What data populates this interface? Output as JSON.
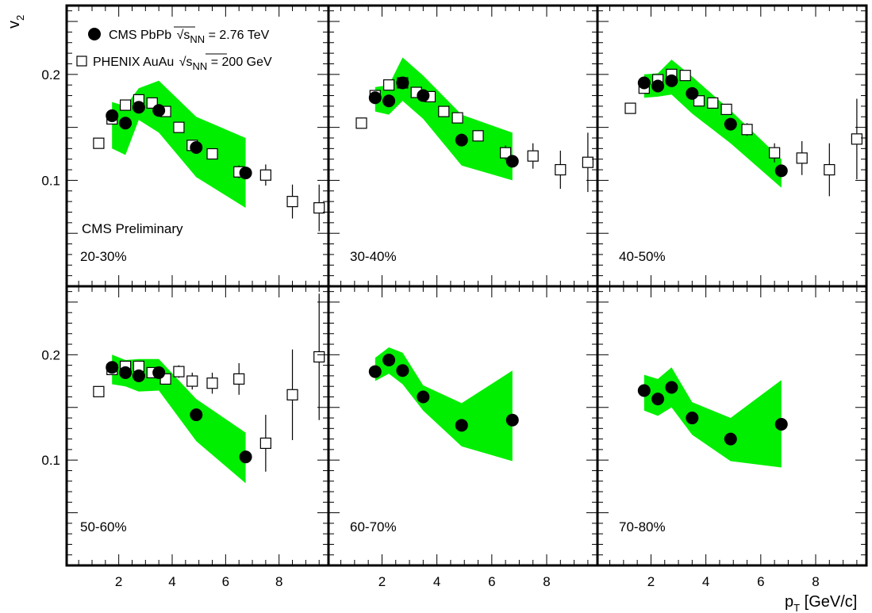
{
  "chart_data": {
    "type": "scatter",
    "layout": "2x3 panels",
    "xlabel": "p",
    "xlabel_sub": "T",
    "xlabel_unit": " [GeV/c]",
    "ylabel": "v",
    "ylabel_sub": "2",
    "xlim": [
      0.05,
      9.85
    ],
    "ylim": [
      0.0,
      0.265
    ],
    "x_ticks": [
      2,
      4,
      6,
      8
    ],
    "y_ticks": [
      0.1,
      0.2
    ],
    "y_tick_labels": [
      "0.1",
      "0.2"
    ],
    "preliminary_label": "CMS Preliminary",
    "band_color": "#00ee00",
    "legend": [
      {
        "marker": "filled-circle",
        "prefix": "CMS PbPb",
        "sqrt_symbol": "√",
        "s": "s",
        "sub": "NN",
        "suffix": " = 2.76 TeV"
      },
      {
        "marker": "open-square",
        "prefix": "PHENIX AuAu",
        "sqrt_symbol": "√",
        "s": "s",
        "sub": "NN",
        "suffix": " = 200 GeV"
      }
    ],
    "panels": [
      {
        "label": "20-30%",
        "cms": [
          [
            1.75,
            0.161
          ],
          [
            2.25,
            0.154
          ],
          [
            2.75,
            0.169
          ],
          [
            3.5,
            0.166
          ],
          [
            4.9,
            0.131
          ],
          [
            6.75,
            0.107
          ]
        ],
        "band": [
          [
            1.75,
            0.174,
            0.13
          ],
          [
            2.25,
            0.17,
            0.124
          ],
          [
            2.75,
            0.187,
            0.157
          ],
          [
            3.5,
            0.194,
            0.145
          ],
          [
            4.9,
            0.16,
            0.103
          ],
          [
            6.75,
            0.14,
            0.074
          ]
        ],
        "phenix": [
          [
            1.25,
            0.135,
            0.002
          ],
          [
            1.75,
            0.158,
            0.002
          ],
          [
            2.25,
            0.171,
            0.002
          ],
          [
            2.75,
            0.176,
            0.002
          ],
          [
            3.25,
            0.173,
            0.002
          ],
          [
            3.75,
            0.165,
            0.003
          ],
          [
            4.25,
            0.15,
            0.003
          ],
          [
            4.75,
            0.133,
            0.004
          ],
          [
            5.5,
            0.125,
            0.004
          ],
          [
            6.5,
            0.108,
            0.006
          ],
          [
            7.5,
            0.105,
            0.01
          ],
          [
            8.5,
            0.08,
            0.016
          ],
          [
            9.5,
            0.074,
            0.022
          ]
        ]
      },
      {
        "label": "30-40%",
        "cms": [
          [
            1.75,
            0.178
          ],
          [
            2.25,
            0.175
          ],
          [
            2.75,
            0.192
          ],
          [
            3.5,
            0.18
          ],
          [
            4.9,
            0.138
          ],
          [
            6.75,
            0.118
          ]
        ],
        "band": [
          [
            1.75,
            0.188,
            0.165
          ],
          [
            2.25,
            0.19,
            0.162
          ],
          [
            2.75,
            0.216,
            0.175
          ],
          [
            3.5,
            0.199,
            0.158
          ],
          [
            4.9,
            0.162,
            0.114
          ],
          [
            6.75,
            0.145,
            0.1
          ]
        ],
        "phenix": [
          [
            1.25,
            0.154,
            0.002
          ],
          [
            1.75,
            0.18,
            0.002
          ],
          [
            2.25,
            0.19,
            0.002
          ],
          [
            2.75,
            0.192,
            0.002
          ],
          [
            3.25,
            0.183,
            0.003
          ],
          [
            3.75,
            0.179,
            0.003
          ],
          [
            4.25,
            0.165,
            0.003
          ],
          [
            4.75,
            0.159,
            0.004
          ],
          [
            5.5,
            0.142,
            0.004
          ],
          [
            6.5,
            0.126,
            0.007
          ],
          [
            7.5,
            0.123,
            0.012
          ],
          [
            8.5,
            0.11,
            0.018
          ],
          [
            9.5,
            0.117,
            0.028
          ]
        ]
      },
      {
        "label": "40-50%",
        "cms": [
          [
            1.75,
            0.192
          ],
          [
            2.25,
            0.189
          ],
          [
            2.75,
            0.194
          ],
          [
            3.5,
            0.182
          ],
          [
            4.9,
            0.153
          ],
          [
            6.75,
            0.109
          ]
        ],
        "band": [
          [
            1.75,
            0.2,
            0.178
          ],
          [
            2.25,
            0.201,
            0.179
          ],
          [
            2.75,
            0.214,
            0.181
          ],
          [
            3.5,
            0.198,
            0.163
          ],
          [
            4.9,
            0.166,
            0.135
          ],
          [
            6.75,
            0.12,
            0.093
          ]
        ],
        "phenix": [
          [
            1.25,
            0.168,
            0.002
          ],
          [
            1.75,
            0.187,
            0.002
          ],
          [
            2.25,
            0.195,
            0.002
          ],
          [
            2.75,
            0.2,
            0.003
          ],
          [
            3.25,
            0.199,
            0.003
          ],
          [
            3.75,
            0.175,
            0.003
          ],
          [
            4.25,
            0.173,
            0.004
          ],
          [
            4.75,
            0.167,
            0.005
          ],
          [
            5.5,
            0.148,
            0.006
          ],
          [
            6.5,
            0.126,
            0.009
          ],
          [
            7.5,
            0.121,
            0.016
          ],
          [
            8.5,
            0.11,
            0.025
          ],
          [
            9.5,
            0.139,
            0.038
          ]
        ]
      },
      {
        "label": "50-60%",
        "cms": [
          [
            1.75,
            0.188
          ],
          [
            2.25,
            0.183
          ],
          [
            2.75,
            0.18
          ],
          [
            3.5,
            0.183
          ],
          [
            4.9,
            0.143
          ],
          [
            6.75,
            0.103
          ]
        ],
        "band": [
          [
            1.75,
            0.2,
            0.172
          ],
          [
            2.25,
            0.195,
            0.17
          ],
          [
            2.75,
            0.196,
            0.165
          ],
          [
            3.5,
            0.196,
            0.166
          ],
          [
            4.9,
            0.158,
            0.118
          ],
          [
            6.75,
            0.126,
            0.078
          ]
        ],
        "phenix": [
          [
            1.25,
            0.165,
            0.002
          ],
          [
            1.75,
            0.186,
            0.003
          ],
          [
            2.25,
            0.189,
            0.003
          ],
          [
            2.75,
            0.189,
            0.004
          ],
          [
            3.25,
            0.183,
            0.004
          ],
          [
            3.75,
            0.177,
            0.005
          ],
          [
            4.25,
            0.184,
            0.006
          ],
          [
            4.75,
            0.175,
            0.008
          ],
          [
            5.5,
            0.173,
            0.01
          ],
          [
            6.5,
            0.177,
            0.015
          ],
          [
            7.5,
            0.116,
            0.027
          ],
          [
            8.5,
            0.162,
            0.043
          ],
          [
            9.5,
            0.198,
            0.06
          ]
        ]
      },
      {
        "label": "60-70%",
        "cms": [
          [
            1.75,
            0.184
          ],
          [
            2.25,
            0.195
          ],
          [
            2.75,
            0.185
          ],
          [
            3.5,
            0.16
          ],
          [
            4.9,
            0.133
          ],
          [
            6.75,
            0.138
          ]
        ],
        "band": [
          [
            1.75,
            0.197,
            0.175
          ],
          [
            2.25,
            0.207,
            0.182
          ],
          [
            2.75,
            0.202,
            0.172
          ],
          [
            3.5,
            0.171,
            0.147
          ],
          [
            4.9,
            0.154,
            0.113
          ],
          [
            6.75,
            0.185,
            0.099
          ]
        ],
        "phenix": []
      },
      {
        "label": "70-80%",
        "cms": [
          [
            1.75,
            0.166
          ],
          [
            2.25,
            0.158
          ],
          [
            2.75,
            0.169
          ],
          [
            3.5,
            0.14
          ],
          [
            4.9,
            0.12
          ],
          [
            6.75,
            0.134
          ]
        ],
        "band": [
          [
            1.75,
            0.181,
            0.147
          ],
          [
            2.25,
            0.177,
            0.142
          ],
          [
            2.75,
            0.188,
            0.15
          ],
          [
            3.5,
            0.155,
            0.124
          ],
          [
            4.9,
            0.14,
            0.099
          ],
          [
            6.75,
            0.176,
            0.093
          ]
        ],
        "phenix": []
      }
    ]
  }
}
